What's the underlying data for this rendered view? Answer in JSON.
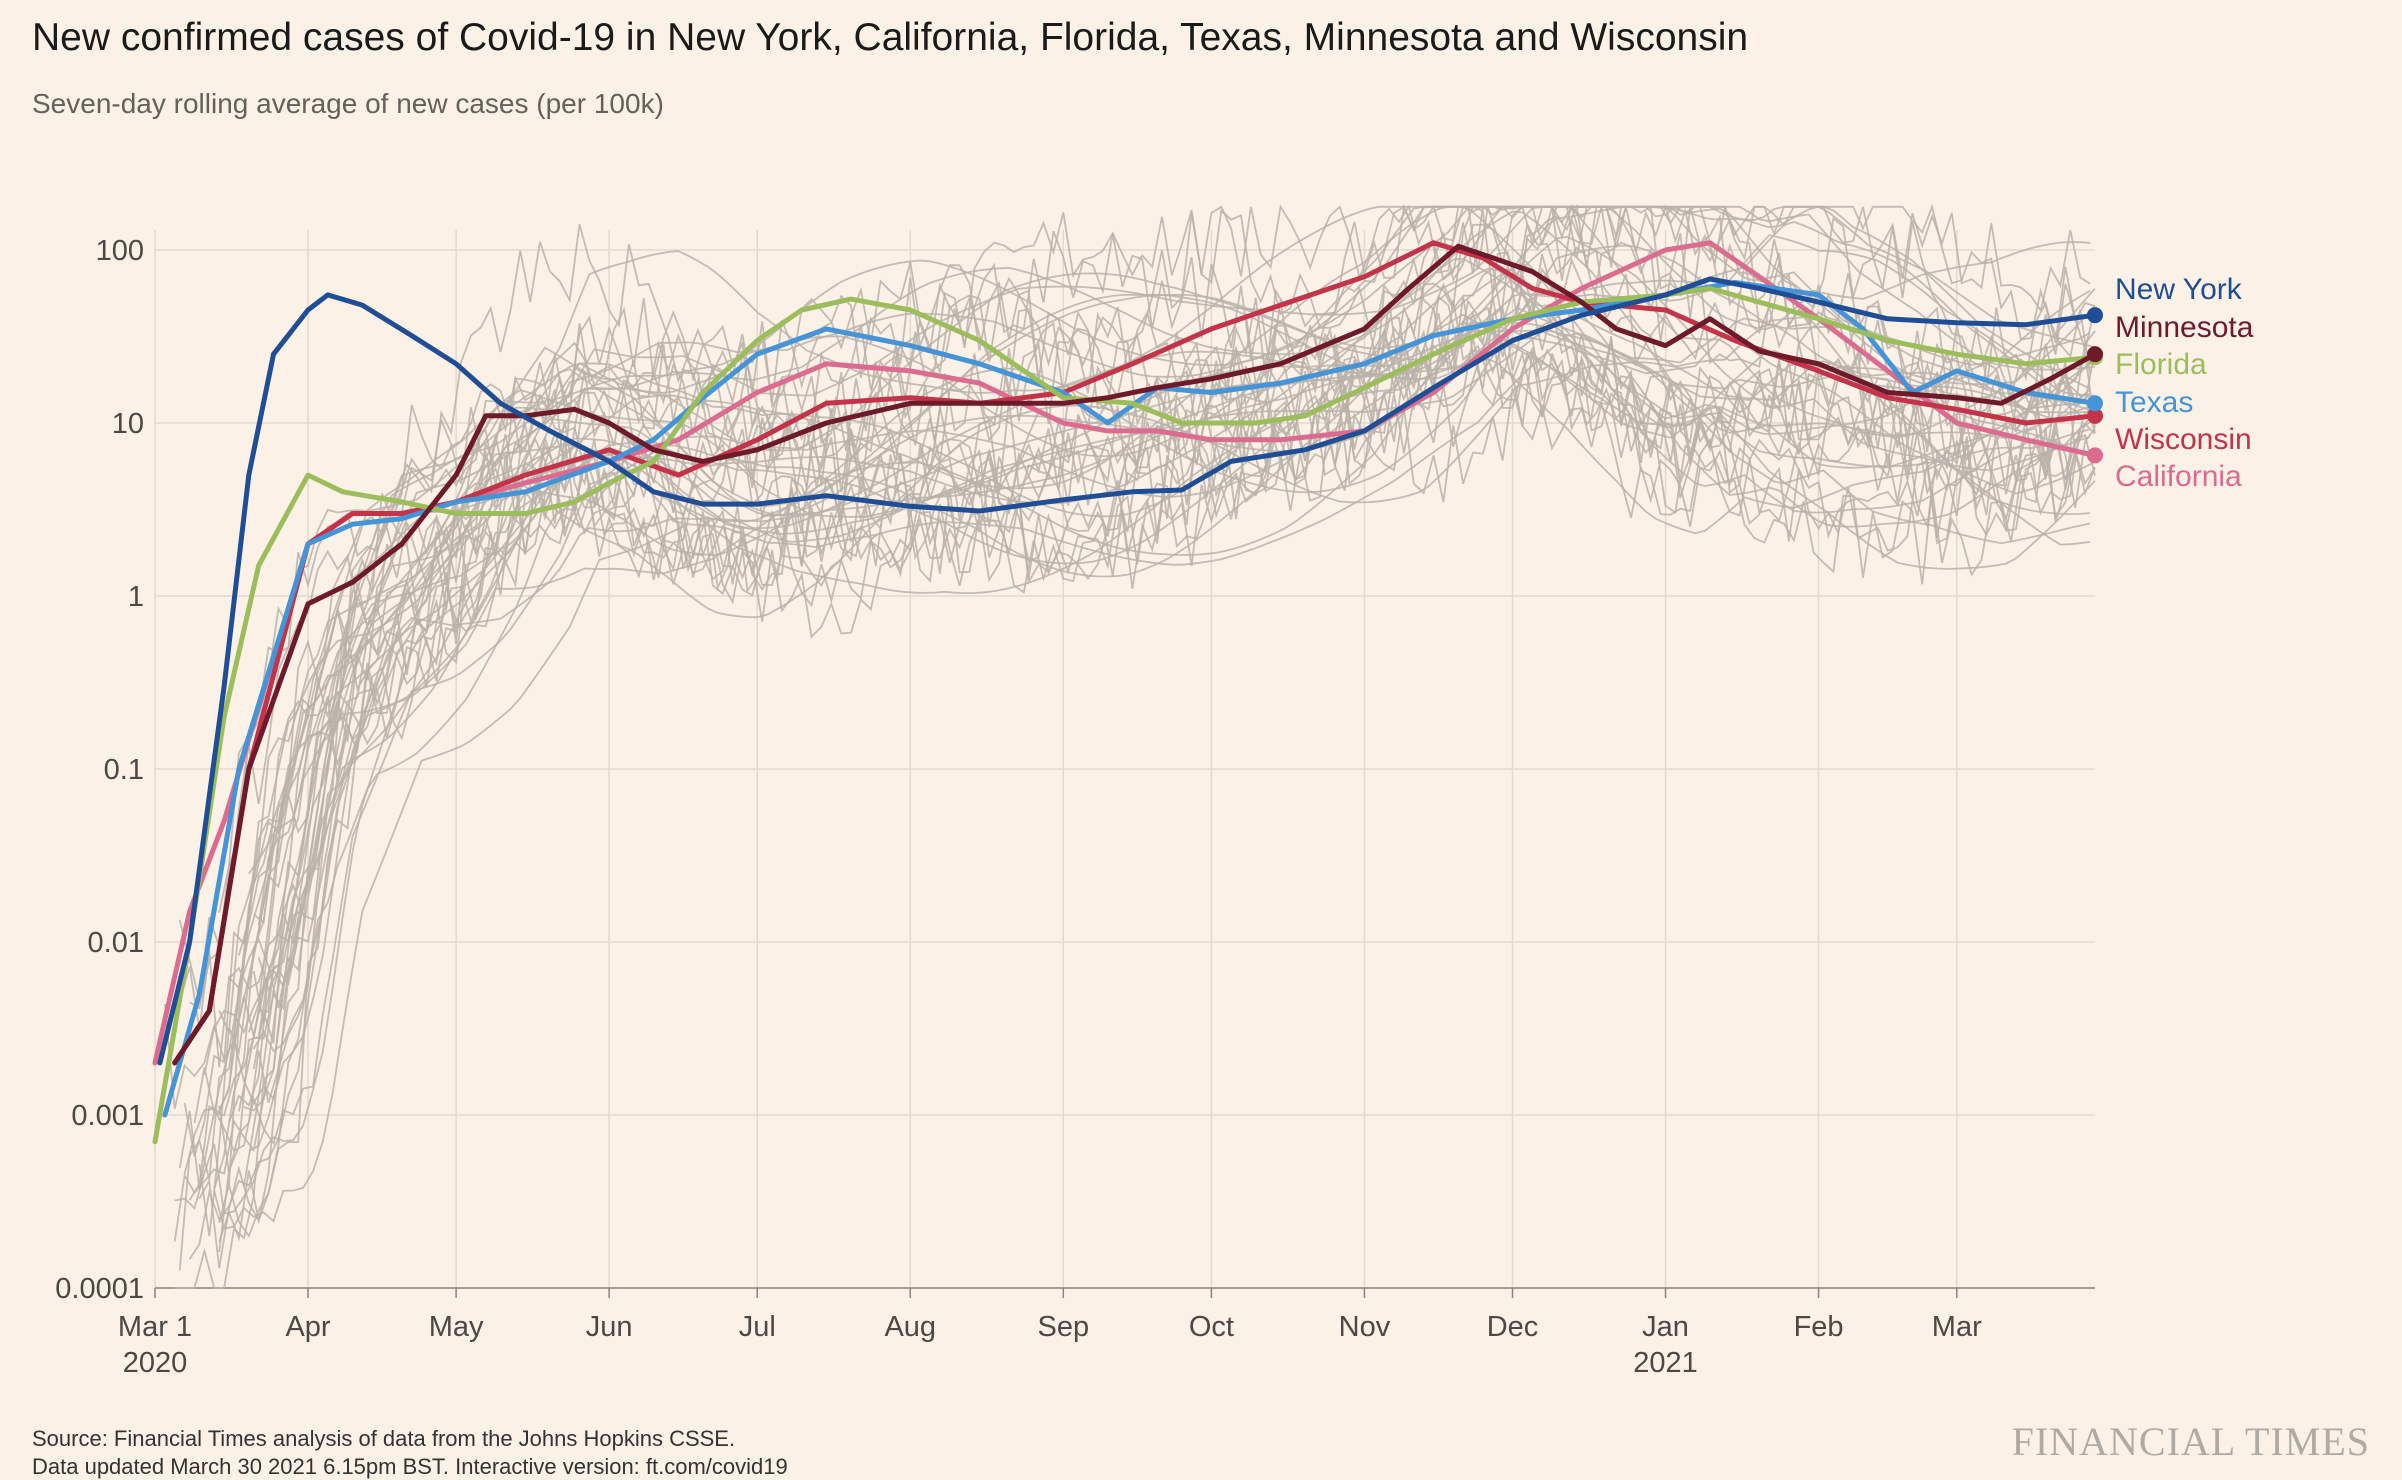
{
  "title": "New confirmed cases of Covid-19 in New York, California, Florida, Texas, Minnesota and Wisconsin",
  "subtitle": "Seven-day rolling average of new cases (per 100k)",
  "source": "Source: Financial Times analysis of data from the Johns Hopkins CSSE.",
  "source2": "Data updated March 30 2021 6.15pm BST. Interactive version: ft.com/covid19",
  "brand": "FINANCIAL TIMES",
  "colors": {
    "background": "#fcf1e6",
    "grid": "#e3d9cf",
    "other_states": "#b9b1aa",
    "New York": "#1f4e96",
    "Minnesota": "#6f1a2b",
    "Florida": "#9cbd5b",
    "Texas": "#4594d7",
    "Wisconsin": "#c3344a",
    "California": "#db6b8f"
  },
  "chart_data": {
    "type": "line",
    "y_scale": "log",
    "ylim": [
      0.0001,
      100
    ],
    "y_ticks": [
      {
        "value": 100,
        "label": "100"
      },
      {
        "value": 10,
        "label": "10"
      },
      {
        "value": 1,
        "label": "1"
      },
      {
        "value": 0.1,
        "label": "0.1"
      },
      {
        "value": 0.01,
        "label": "0.01"
      },
      {
        "value": 0.001,
        "label": "0.001"
      },
      {
        "value": 0.0001,
        "label": "0.0001"
      }
    ],
    "x_start": "2020-03-01",
    "x_end": "2021-03-29",
    "x_ticks": [
      {
        "date": "2020-03-01",
        "label": "Mar 1",
        "sublabel": "2020"
      },
      {
        "date": "2020-04-01",
        "label": "Apr"
      },
      {
        "date": "2020-05-01",
        "label": "May"
      },
      {
        "date": "2020-06-01",
        "label": "Jun"
      },
      {
        "date": "2020-07-01",
        "label": "Jul"
      },
      {
        "date": "2020-08-01",
        "label": "Aug"
      },
      {
        "date": "2020-09-01",
        "label": "Sep"
      },
      {
        "date": "2020-10-01",
        "label": "Oct"
      },
      {
        "date": "2020-11-01",
        "label": "Nov"
      },
      {
        "date": "2020-12-01",
        "label": "Dec"
      },
      {
        "date": "2021-01-01",
        "label": "Jan",
        "sublabel": "2021"
      },
      {
        "date": "2021-02-01",
        "label": "Feb"
      },
      {
        "date": "2021-03-01",
        "label": "Mar"
      }
    ],
    "series": [
      {
        "name": "New York",
        "points": [
          [
            "2020-03-02",
            0.002
          ],
          [
            "2020-03-08",
            0.01
          ],
          [
            "2020-03-15",
            0.3
          ],
          [
            "2020-03-20",
            5
          ],
          [
            "2020-03-25",
            25
          ],
          [
            "2020-04-01",
            45
          ],
          [
            "2020-04-05",
            55
          ],
          [
            "2020-04-12",
            48
          ],
          [
            "2020-04-22",
            32
          ],
          [
            "2020-05-01",
            22
          ],
          [
            "2020-05-10",
            13
          ],
          [
            "2020-05-20",
            9
          ],
          [
            "2020-06-01",
            6
          ],
          [
            "2020-06-10",
            4
          ],
          [
            "2020-06-20",
            3.4
          ],
          [
            "2020-07-01",
            3.4
          ],
          [
            "2020-07-15",
            3.8
          ],
          [
            "2020-08-01",
            3.3
          ],
          [
            "2020-08-15",
            3.1
          ],
          [
            "2020-09-01",
            3.6
          ],
          [
            "2020-09-15",
            4
          ],
          [
            "2020-09-25",
            4.1
          ],
          [
            "2020-10-05",
            6
          ],
          [
            "2020-10-20",
            7
          ],
          [
            "2020-11-01",
            9
          ],
          [
            "2020-11-15",
            16
          ],
          [
            "2020-12-01",
            30
          ],
          [
            "2020-12-15",
            42
          ],
          [
            "2021-01-01",
            55
          ],
          [
            "2021-01-10",
            68
          ],
          [
            "2021-01-20",
            60
          ],
          [
            "2021-02-01",
            50
          ],
          [
            "2021-02-15",
            40
          ],
          [
            "2021-03-01",
            38
          ],
          [
            "2021-03-15",
            37
          ],
          [
            "2021-03-29",
            42
          ]
        ]
      },
      {
        "name": "Minnesota",
        "points": [
          [
            "2020-03-05",
            0.002
          ],
          [
            "2020-03-12",
            0.004
          ],
          [
            "2020-03-20",
            0.1
          ],
          [
            "2020-04-01",
            0.9
          ],
          [
            "2020-04-10",
            1.2
          ],
          [
            "2020-04-20",
            2
          ],
          [
            "2020-05-01",
            5
          ],
          [
            "2020-05-07",
            11
          ],
          [
            "2020-05-15",
            11
          ],
          [
            "2020-05-25",
            12
          ],
          [
            "2020-06-01",
            10
          ],
          [
            "2020-06-10",
            7
          ],
          [
            "2020-06-20",
            6
          ],
          [
            "2020-07-01",
            7
          ],
          [
            "2020-07-15",
            10
          ],
          [
            "2020-08-01",
            13
          ],
          [
            "2020-08-15",
            13
          ],
          [
            "2020-09-01",
            13
          ],
          [
            "2020-09-10",
            14
          ],
          [
            "2020-09-20",
            16
          ],
          [
            "2020-10-01",
            18
          ],
          [
            "2020-10-15",
            22
          ],
          [
            "2020-11-01",
            35
          ],
          [
            "2020-11-10",
            60
          ],
          [
            "2020-11-20",
            105
          ],
          [
            "2020-11-27",
            90
          ],
          [
            "2020-12-05",
            75
          ],
          [
            "2020-12-15",
            50
          ],
          [
            "2020-12-22",
            35
          ],
          [
            "2021-01-01",
            28
          ],
          [
            "2021-01-10",
            40
          ],
          [
            "2021-01-20",
            26
          ],
          [
            "2021-02-01",
            22
          ],
          [
            "2021-02-15",
            15
          ],
          [
            "2021-03-01",
            14
          ],
          [
            "2021-03-10",
            13
          ],
          [
            "2021-03-20",
            18
          ],
          [
            "2021-03-29",
            25
          ]
        ]
      },
      {
        "name": "Florida",
        "points": [
          [
            "2020-03-01",
            0.0007
          ],
          [
            "2020-03-08",
            0.01
          ],
          [
            "2020-03-15",
            0.2
          ],
          [
            "2020-03-22",
            1.5
          ],
          [
            "2020-04-01",
            5
          ],
          [
            "2020-04-08",
            4
          ],
          [
            "2020-04-20",
            3.5
          ],
          [
            "2020-05-01",
            3
          ],
          [
            "2020-05-15",
            3
          ],
          [
            "2020-05-25",
            3.5
          ],
          [
            "2020-06-01",
            4.5
          ],
          [
            "2020-06-10",
            6
          ],
          [
            "2020-06-20",
            15
          ],
          [
            "2020-07-01",
            30
          ],
          [
            "2020-07-10",
            45
          ],
          [
            "2020-07-20",
            52
          ],
          [
            "2020-08-01",
            45
          ],
          [
            "2020-08-15",
            30
          ],
          [
            "2020-09-01",
            14
          ],
          [
            "2020-09-15",
            13
          ],
          [
            "2020-09-25",
            10
          ],
          [
            "2020-10-10",
            10
          ],
          [
            "2020-10-20",
            11
          ],
          [
            "2020-11-01",
            16
          ],
          [
            "2020-11-15",
            25
          ],
          [
            "2020-12-01",
            40
          ],
          [
            "2020-12-15",
            50
          ],
          [
            "2021-01-01",
            55
          ],
          [
            "2021-01-10",
            60
          ],
          [
            "2021-01-20",
            50
          ],
          [
            "2021-02-01",
            40
          ],
          [
            "2021-02-15",
            30
          ],
          [
            "2021-03-01",
            25
          ],
          [
            "2021-03-15",
            22
          ],
          [
            "2021-03-29",
            24
          ]
        ]
      },
      {
        "name": "Texas",
        "points": [
          [
            "2020-03-03",
            0.001
          ],
          [
            "2020-03-10",
            0.005
          ],
          [
            "2020-03-18",
            0.1
          ],
          [
            "2020-04-01",
            2
          ],
          [
            "2020-04-10",
            2.6
          ],
          [
            "2020-04-20",
            2.8
          ],
          [
            "2020-05-01",
            3.5
          ],
          [
            "2020-05-15",
            4
          ],
          [
            "2020-06-01",
            6
          ],
          [
            "2020-06-10",
            8
          ],
          [
            "2020-06-20",
            14
          ],
          [
            "2020-07-01",
            25
          ],
          [
            "2020-07-15",
            35
          ],
          [
            "2020-08-01",
            28
          ],
          [
            "2020-08-15",
            22
          ],
          [
            "2020-09-01",
            15
          ],
          [
            "2020-09-10",
            10
          ],
          [
            "2020-09-20",
            16
          ],
          [
            "2020-10-01",
            15
          ],
          [
            "2020-10-15",
            17
          ],
          [
            "2020-11-01",
            22
          ],
          [
            "2020-11-15",
            32
          ],
          [
            "2020-12-01",
            40
          ],
          [
            "2020-12-15",
            45
          ],
          [
            "2021-01-01",
            55
          ],
          [
            "2021-01-15",
            65
          ],
          [
            "2021-02-01",
            55
          ],
          [
            "2021-02-10",
            35
          ],
          [
            "2021-02-20",
            15
          ],
          [
            "2021-03-01",
            20
          ],
          [
            "2021-03-15",
            15
          ],
          [
            "2021-03-29",
            13
          ]
        ]
      },
      {
        "name": "Wisconsin",
        "points": [
          [
            "2020-03-05",
            0.002
          ],
          [
            "2020-03-12",
            0.004
          ],
          [
            "2020-03-20",
            0.1
          ],
          [
            "2020-04-01",
            2
          ],
          [
            "2020-04-10",
            3
          ],
          [
            "2020-04-20",
            3
          ],
          [
            "2020-05-01",
            3.5
          ],
          [
            "2020-05-15",
            5
          ],
          [
            "2020-06-01",
            7
          ],
          [
            "2020-06-15",
            5
          ],
          [
            "2020-07-01",
            8
          ],
          [
            "2020-07-15",
            13
          ],
          [
            "2020-08-01",
            14
          ],
          [
            "2020-08-15",
            13
          ],
          [
            "2020-09-01",
            15
          ],
          [
            "2020-09-15",
            22
          ],
          [
            "2020-10-01",
            35
          ],
          [
            "2020-10-15",
            48
          ],
          [
            "2020-11-01",
            70
          ],
          [
            "2020-11-15",
            110
          ],
          [
            "2020-11-25",
            90
          ],
          [
            "2020-12-05",
            60
          ],
          [
            "2020-12-15",
            50
          ],
          [
            "2021-01-01",
            45
          ],
          [
            "2021-01-15",
            30
          ],
          [
            "2021-02-01",
            20
          ],
          [
            "2021-02-15",
            14
          ],
          [
            "2021-03-01",
            12
          ],
          [
            "2021-03-15",
            10
          ],
          [
            "2021-03-29",
            11
          ]
        ]
      },
      {
        "name": "California",
        "points": [
          [
            "2020-03-01",
            0.002
          ],
          [
            "2020-03-08",
            0.015
          ],
          [
            "2020-03-15",
            0.05
          ],
          [
            "2020-04-01",
            2
          ],
          [
            "2020-04-10",
            3
          ],
          [
            "2020-04-20",
            3
          ],
          [
            "2020-05-01",
            3.5
          ],
          [
            "2020-05-15",
            4.5
          ],
          [
            "2020-06-01",
            6
          ],
          [
            "2020-06-15",
            8
          ],
          [
            "2020-07-01",
            15
          ],
          [
            "2020-07-15",
            22
          ],
          [
            "2020-08-01",
            20
          ],
          [
            "2020-08-15",
            17
          ],
          [
            "2020-09-01",
            10
          ],
          [
            "2020-09-10",
            9
          ],
          [
            "2020-09-20",
            9
          ],
          [
            "2020-10-01",
            8
          ],
          [
            "2020-10-15",
            8
          ],
          [
            "2020-11-01",
            9
          ],
          [
            "2020-11-15",
            15
          ],
          [
            "2020-12-01",
            35
          ],
          [
            "2020-12-15",
            60
          ],
          [
            "2021-01-01",
            100
          ],
          [
            "2021-01-10",
            110
          ],
          [
            "2021-01-20",
            70
          ],
          [
            "2021-02-01",
            40
          ],
          [
            "2021-02-15",
            20
          ],
          [
            "2021-03-01",
            10
          ],
          [
            "2021-03-15",
            8
          ],
          [
            "2021-03-29",
            6.5
          ]
        ]
      }
    ]
  }
}
